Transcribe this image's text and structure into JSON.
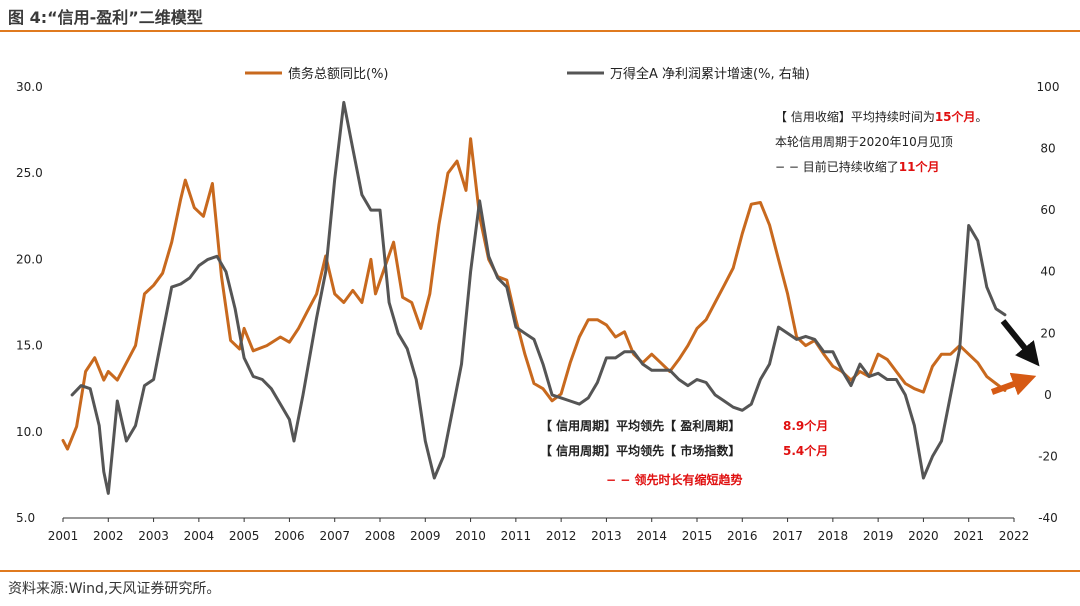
{
  "figure_title": "图 4:“信用-盈利”二维模型",
  "source": "资料来源:Wind,天风证券研究所。",
  "colors": {
    "series_debt": "#c8691e",
    "series_profit": "#555555",
    "accent": "#e07a1f",
    "highlight": "#e01010"
  },
  "chart_data": {
    "type": "line",
    "x_label_years": [
      "2001",
      "2002",
      "2003",
      "2004",
      "2005",
      "2006",
      "2007",
      "2008",
      "2009",
      "2010",
      "2011",
      "2012",
      "2013",
      "2014",
      "2015",
      "2016",
      "2017",
      "2018",
      "2019",
      "2020",
      "2021",
      "2022"
    ],
    "left_axis": {
      "min": 5.0,
      "max": 30.0,
      "ticks": [
        "5.0",
        "10.0",
        "15.0",
        "20.0",
        "25.0",
        "30.0"
      ]
    },
    "right_axis": {
      "min": -40,
      "max": 100,
      "ticks": [
        "-40",
        "-20",
        "0",
        "20",
        "40",
        "60",
        "80",
        "100"
      ]
    },
    "series": [
      {
        "name": "债务总额同比(%)",
        "axis": "left",
        "points": [
          [
            2001.0,
            9.5
          ],
          [
            2001.1,
            9.0
          ],
          [
            2001.3,
            10.3
          ],
          [
            2001.5,
            13.5
          ],
          [
            2001.7,
            14.3
          ],
          [
            2001.9,
            13.0
          ],
          [
            2002.0,
            13.5
          ],
          [
            2002.2,
            13.0
          ],
          [
            2002.4,
            14.0
          ],
          [
            2002.6,
            15.0
          ],
          [
            2002.8,
            18.0
          ],
          [
            2003.0,
            18.5
          ],
          [
            2003.2,
            19.2
          ],
          [
            2003.4,
            21.0
          ],
          [
            2003.6,
            23.5
          ],
          [
            2003.7,
            24.6
          ],
          [
            2003.9,
            23.0
          ],
          [
            2004.1,
            22.5
          ],
          [
            2004.3,
            24.4
          ],
          [
            2004.5,
            19.0
          ],
          [
            2004.7,
            15.3
          ],
          [
            2004.9,
            14.8
          ],
          [
            2005.0,
            16.0
          ],
          [
            2005.2,
            14.7
          ],
          [
            2005.5,
            15.0
          ],
          [
            2005.8,
            15.5
          ],
          [
            2006.0,
            15.2
          ],
          [
            2006.2,
            16.0
          ],
          [
            2006.4,
            17.0
          ],
          [
            2006.6,
            18.0
          ],
          [
            2006.8,
            20.2
          ],
          [
            2007.0,
            18.0
          ],
          [
            2007.2,
            17.5
          ],
          [
            2007.4,
            18.2
          ],
          [
            2007.6,
            17.5
          ],
          [
            2007.8,
            20.0
          ],
          [
            2007.9,
            18.0
          ],
          [
            2008.1,
            19.5
          ],
          [
            2008.3,
            21.0
          ],
          [
            2008.5,
            17.8
          ],
          [
            2008.7,
            17.5
          ],
          [
            2008.9,
            16.0
          ],
          [
            2009.1,
            18.0
          ],
          [
            2009.3,
            22.0
          ],
          [
            2009.5,
            25.0
          ],
          [
            2009.7,
            25.7
          ],
          [
            2009.9,
            24.0
          ],
          [
            2010.0,
            27.0
          ],
          [
            2010.2,
            22.5
          ],
          [
            2010.4,
            20.0
          ],
          [
            2010.6,
            19.0
          ],
          [
            2010.8,
            18.8
          ],
          [
            2011.0,
            16.5
          ],
          [
            2011.2,
            14.5
          ],
          [
            2011.4,
            12.8
          ],
          [
            2011.6,
            12.5
          ],
          [
            2011.8,
            11.8
          ],
          [
            2012.0,
            12.2
          ],
          [
            2012.2,
            14.0
          ],
          [
            2012.4,
            15.5
          ],
          [
            2012.6,
            16.5
          ],
          [
            2012.8,
            16.5
          ],
          [
            2013.0,
            16.2
          ],
          [
            2013.2,
            15.5
          ],
          [
            2013.4,
            15.8
          ],
          [
            2013.6,
            14.5
          ],
          [
            2013.8,
            14.0
          ],
          [
            2014.0,
            14.5
          ],
          [
            2014.2,
            14.0
          ],
          [
            2014.4,
            13.5
          ],
          [
            2014.6,
            14.2
          ],
          [
            2014.8,
            15.0
          ],
          [
            2015.0,
            16.0
          ],
          [
            2015.2,
            16.5
          ],
          [
            2015.4,
            17.5
          ],
          [
            2015.6,
            18.5
          ],
          [
            2015.8,
            19.5
          ],
          [
            2016.0,
            21.5
          ],
          [
            2016.2,
            23.2
          ],
          [
            2016.4,
            23.3
          ],
          [
            2016.6,
            22.0
          ],
          [
            2016.8,
            20.0
          ],
          [
            2017.0,
            18.0
          ],
          [
            2017.2,
            15.5
          ],
          [
            2017.4,
            15.0
          ],
          [
            2017.6,
            15.3
          ],
          [
            2017.8,
            14.5
          ],
          [
            2018.0,
            13.8
          ],
          [
            2018.2,
            13.5
          ],
          [
            2018.4,
            13.0
          ],
          [
            2018.6,
            13.5
          ],
          [
            2018.8,
            13.2
          ],
          [
            2019.0,
            14.5
          ],
          [
            2019.2,
            14.2
          ],
          [
            2019.4,
            13.5
          ],
          [
            2019.6,
            12.8
          ],
          [
            2019.8,
            12.5
          ],
          [
            2020.0,
            12.3
          ],
          [
            2020.2,
            13.8
          ],
          [
            2020.4,
            14.5
          ],
          [
            2020.6,
            14.5
          ],
          [
            2020.8,
            15.0
          ],
          [
            2021.0,
            14.5
          ],
          [
            2021.2,
            14.0
          ],
          [
            2021.4,
            13.2
          ],
          [
            2021.6,
            12.8
          ],
          [
            2021.8,
            12.4
          ]
        ]
      },
      {
        "name": "万得全A 净利润累计增速(%, 右轴)",
        "axis": "right",
        "points": [
          [
            2001.2,
            0.0
          ],
          [
            2001.4,
            3.0
          ],
          [
            2001.6,
            2.0
          ],
          [
            2001.8,
            -10.0
          ],
          [
            2001.9,
            -25.0
          ],
          [
            2002.0,
            -32.0
          ],
          [
            2002.2,
            -2.0
          ],
          [
            2002.4,
            -15.0
          ],
          [
            2002.6,
            -10.0
          ],
          [
            2002.8,
            3.0
          ],
          [
            2003.0,
            5.0
          ],
          [
            2003.2,
            20.0
          ],
          [
            2003.4,
            35.0
          ],
          [
            2003.6,
            36.0
          ],
          [
            2003.8,
            38.0
          ],
          [
            2004.0,
            42.0
          ],
          [
            2004.2,
            44.0
          ],
          [
            2004.4,
            45.0
          ],
          [
            2004.6,
            40.0
          ],
          [
            2004.8,
            28.0
          ],
          [
            2005.0,
            12.0
          ],
          [
            2005.2,
            6.0
          ],
          [
            2005.4,
            5.0
          ],
          [
            2005.6,
            2.0
          ],
          [
            2005.8,
            -3.0
          ],
          [
            2006.0,
            -8.0
          ],
          [
            2006.1,
            -15.0
          ],
          [
            2006.3,
            0.0
          ],
          [
            2006.6,
            25.0
          ],
          [
            2006.8,
            40.0
          ],
          [
            2007.0,
            70.0
          ],
          [
            2007.2,
            95.0
          ],
          [
            2007.4,
            80.0
          ],
          [
            2007.6,
            65.0
          ],
          [
            2007.8,
            60.0
          ],
          [
            2008.0,
            60.0
          ],
          [
            2008.2,
            30.0
          ],
          [
            2008.4,
            20.0
          ],
          [
            2008.6,
            15.0
          ],
          [
            2008.8,
            5.0
          ],
          [
            2009.0,
            -15.0
          ],
          [
            2009.2,
            -27.0
          ],
          [
            2009.4,
            -20.0
          ],
          [
            2009.6,
            -5.0
          ],
          [
            2009.8,
            10.0
          ],
          [
            2010.0,
            40.0
          ],
          [
            2010.2,
            63.0
          ],
          [
            2010.4,
            45.0
          ],
          [
            2010.6,
            38.0
          ],
          [
            2010.8,
            35.0
          ],
          [
            2011.0,
            22.0
          ],
          [
            2011.2,
            20.0
          ],
          [
            2011.4,
            18.0
          ],
          [
            2011.6,
            10.0
          ],
          [
            2011.8,
            0.0
          ],
          [
            2012.0,
            -1.0
          ],
          [
            2012.2,
            -2.0
          ],
          [
            2012.4,
            -3.0
          ],
          [
            2012.6,
            -1.0
          ],
          [
            2012.8,
            4.0
          ],
          [
            2013.0,
            12.0
          ],
          [
            2013.2,
            12.0
          ],
          [
            2013.4,
            14.0
          ],
          [
            2013.6,
            14.0
          ],
          [
            2013.8,
            10.0
          ],
          [
            2014.0,
            8.0
          ],
          [
            2014.2,
            8.0
          ],
          [
            2014.4,
            8.0
          ],
          [
            2014.6,
            5.0
          ],
          [
            2014.8,
            3.0
          ],
          [
            2015.0,
            5.0
          ],
          [
            2015.2,
            4.0
          ],
          [
            2015.4,
            0.0
          ],
          [
            2015.6,
            -2.0
          ],
          [
            2015.8,
            -4.0
          ],
          [
            2016.0,
            -5.0
          ],
          [
            2016.2,
            -3.0
          ],
          [
            2016.4,
            5.0
          ],
          [
            2016.6,
            10.0
          ],
          [
            2016.8,
            22.0
          ],
          [
            2017.0,
            20.0
          ],
          [
            2017.2,
            18.0
          ],
          [
            2017.4,
            19.0
          ],
          [
            2017.6,
            18.0
          ],
          [
            2017.8,
            14.0
          ],
          [
            2018.0,
            14.0
          ],
          [
            2018.2,
            8.0
          ],
          [
            2018.4,
            3.0
          ],
          [
            2018.6,
            10.0
          ],
          [
            2018.8,
            6.0
          ],
          [
            2019.0,
            7.0
          ],
          [
            2019.2,
            5.0
          ],
          [
            2019.4,
            5.0
          ],
          [
            2019.6,
            0.0
          ],
          [
            2019.8,
            -10.0
          ],
          [
            2020.0,
            -27.0
          ],
          [
            2020.2,
            -20.0
          ],
          [
            2020.4,
            -15.0
          ],
          [
            2020.6,
            0.0
          ],
          [
            2020.8,
            15.0
          ],
          [
            2021.0,
            55.0
          ],
          [
            2021.2,
            50.0
          ],
          [
            2021.4,
            35.0
          ],
          [
            2021.6,
            28.0
          ],
          [
            2021.8,
            26.0
          ]
        ]
      }
    ],
    "legend": [
      "债务总额同比(%)",
      "万得全A 净利润累计增速(%, 右轴)"
    ]
  },
  "annotations": {
    "box1_line1_prefix": "【 信用收缩】平均持续时间为",
    "box1_line1_value": "15个月",
    "box1_line1_suffix": "。",
    "box1_line2": "本轮信用周期于2020年10月见顶",
    "box1_line3_prefix": "− − 目前已持续收缩了",
    "box1_line3_value": "11个月",
    "box2_line1_label": "【 信用周期】平均领先【 盈利周期】",
    "box2_line1_value": "8.9个月",
    "box2_line2_label": "【 信用周期】平均领先【 市场指数】",
    "box2_line2_value": "5.4个月",
    "box2_line3": "− − 领先时长有缩短趋势"
  }
}
